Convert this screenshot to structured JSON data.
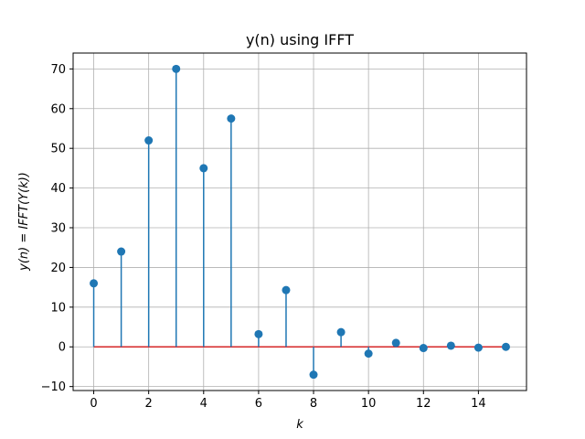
{
  "chart_data": {
    "type": "stem",
    "title": "y(n) using IFFT",
    "xlabel": "k",
    "ylabel": "y(n) = IFFT(Y(k))",
    "x": [
      0,
      1,
      2,
      3,
      4,
      5,
      6,
      7,
      8,
      9,
      10,
      11,
      12,
      13,
      14,
      15
    ],
    "values": [
      16,
      24,
      52,
      70,
      45,
      57.5,
      3.2,
      14.3,
      -7,
      3.7,
      -1.7,
      1,
      -0.3,
      0.3,
      -0.2,
      0
    ],
    "xlim": [
      -0.75,
      15.75
    ],
    "ylim": [
      -11,
      74
    ],
    "xticks": [
      0,
      2,
      4,
      6,
      8,
      10,
      12,
      14
    ],
    "yticks": [
      -10,
      0,
      10,
      20,
      30,
      40,
      50,
      60,
      70
    ],
    "grid": true,
    "colors": {
      "stem": "#1f77b4",
      "baseline": "#d62728",
      "grid": "#b0b0b0",
      "axes": "#000000"
    }
  }
}
